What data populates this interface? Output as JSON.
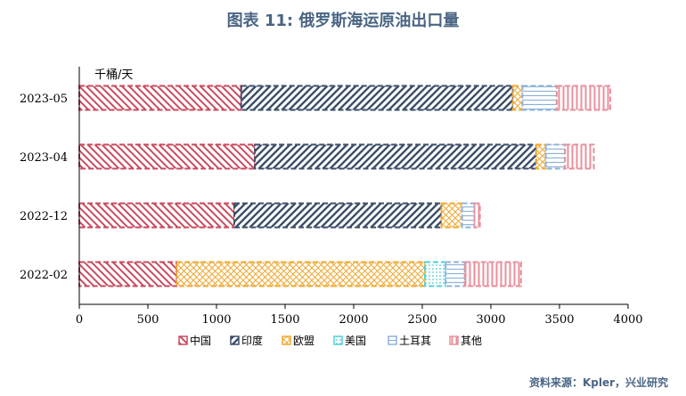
{
  "title": "图表 11: 俄罗斯海运原油出口量",
  "source": "资料来源：Kpler，兴业研究",
  "chart_data": {
    "type": "bar",
    "orientation": "horizontal",
    "stacked": true,
    "unit_label": "千桶/天",
    "categories": [
      "2023-05",
      "2023-04",
      "2022-12",
      "2022-02"
    ],
    "xlim": [
      0,
      4000
    ],
    "xticks": [
      0,
      500,
      1000,
      1500,
      2000,
      2500,
      3000,
      3500,
      4000
    ],
    "grid": false,
    "legend_position": "bottom",
    "series": [
      {
        "name": "中国",
        "color": "#c94b5e",
        "pattern": "diag-left",
        "values": [
          1180,
          1280,
          1130,
          710
        ]
      },
      {
        "name": "印度",
        "color": "#3d4f6a",
        "pattern": "diag-right",
        "values": [
          1980,
          2050,
          1510,
          0
        ]
      },
      {
        "name": "欧盟",
        "color": "#f0a830",
        "pattern": "cross",
        "values": [
          70,
          70,
          150,
          1810
        ]
      },
      {
        "name": "美国",
        "color": "#4fd0d8",
        "pattern": "dots",
        "values": [
          0,
          0,
          0,
          150
        ]
      },
      {
        "name": "土耳其",
        "color": "#8fb3d9",
        "pattern": "hlines",
        "values": [
          250,
          140,
          90,
          140
        ]
      },
      {
        "name": "其他",
        "color": "#e8909c",
        "pattern": "vlines",
        "values": [
          390,
          210,
          40,
          410
        ]
      }
    ]
  }
}
